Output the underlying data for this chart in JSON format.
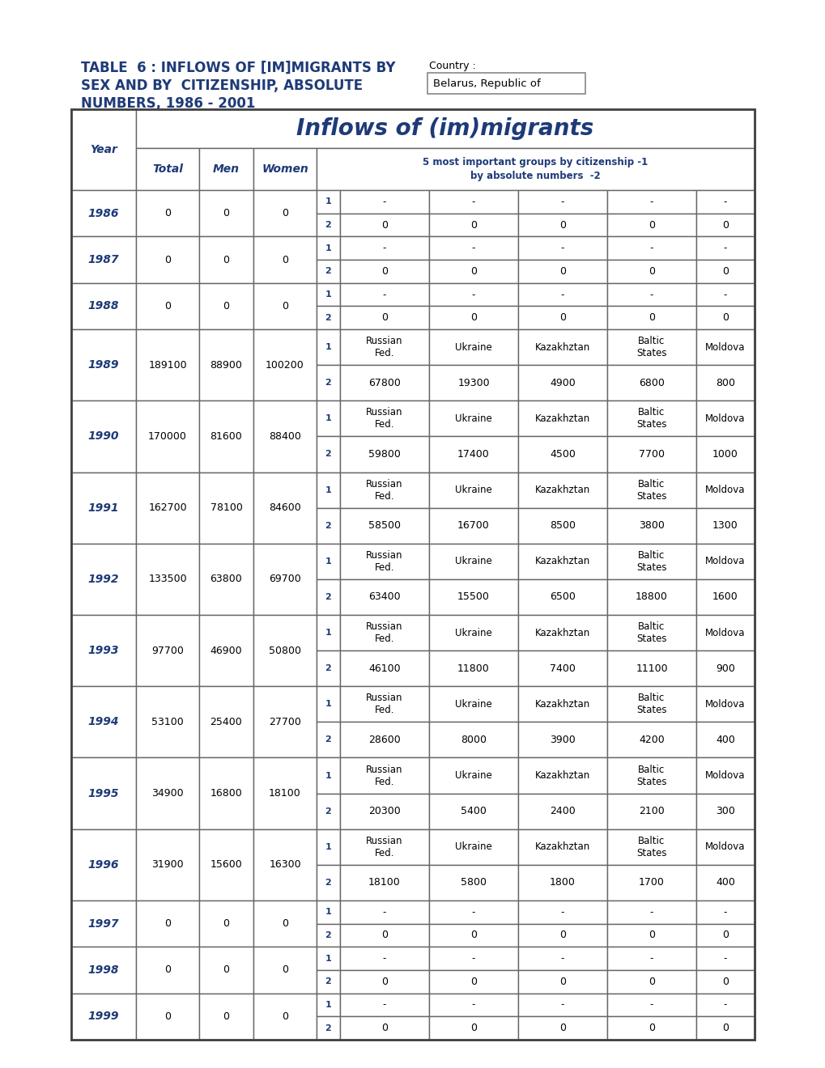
{
  "title_left_line1": "TABLE  6 : INFLOWS OF [IM]MIGRANTS BY",
  "title_left_line2": "SEX AND BY  CITIZENSHIP, ABSOLUTE",
  "title_left_line3": "NUMBERS, 1986 - 2001",
  "title_right_label": "Country :",
  "title_right_value": "Belarus, Republic of",
  "table_header": "Inflows of (im)migrants",
  "subheader1": "5 most important groups by citizenship -1",
  "subheader2": "by absolute numbers  -2",
  "rows": [
    {
      "year": "1986",
      "total": "0",
      "men": "0",
      "women": "0",
      "r1": [
        "-",
        "-",
        "-",
        "-",
        "-"
      ],
      "r2": [
        "0",
        "0",
        "0",
        "0",
        "0"
      ]
    },
    {
      "year": "1987",
      "total": "0",
      "men": "0",
      "women": "0",
      "r1": [
        "-",
        "-",
        "-",
        "-",
        "-"
      ],
      "r2": [
        "0",
        "0",
        "0",
        "0",
        "0"
      ]
    },
    {
      "year": "1988",
      "total": "0",
      "men": "0",
      "women": "0",
      "r1": [
        "-",
        "-",
        "-",
        "-",
        "-"
      ],
      "r2": [
        "0",
        "0",
        "0",
        "0",
        "0"
      ]
    },
    {
      "year": "1989",
      "total": "189100",
      "men": "88900",
      "women": "100200",
      "r1": [
        "Russian\nFed.",
        "Ukraine",
        "Kazakhztan",
        "Baltic\nStates",
        "Moldova"
      ],
      "r2": [
        "67800",
        "19300",
        "4900",
        "6800",
        "800"
      ]
    },
    {
      "year": "1990",
      "total": "170000",
      "men": "81600",
      "women": "88400",
      "r1": [
        "Russian\nFed.",
        "Ukraine",
        "Kazakhztan",
        "Baltic\nStates",
        "Moldova"
      ],
      "r2": [
        "59800",
        "17400",
        "4500",
        "7700",
        "1000"
      ]
    },
    {
      "year": "1991",
      "total": "162700",
      "men": "78100",
      "women": "84600",
      "r1": [
        "Russian\nFed.",
        "Ukraine",
        "Kazakhztan",
        "Baltic\nStates",
        "Moldova"
      ],
      "r2": [
        "58500",
        "16700",
        "8500",
        "3800",
        "1300"
      ]
    },
    {
      "year": "1992",
      "total": "133500",
      "men": "63800",
      "women": "69700",
      "r1": [
        "Russian\nFed.",
        "Ukraine",
        "Kazakhztan",
        "Baltic\nStates",
        "Moldova"
      ],
      "r2": [
        "63400",
        "15500",
        "6500",
        "18800",
        "1600"
      ]
    },
    {
      "year": "1993",
      "total": "97700",
      "men": "46900",
      "women": "50800",
      "r1": [
        "Russian\nFed.",
        "Ukraine",
        "Kazakhztan",
        "Baltic\nStates",
        "Moldova"
      ],
      "r2": [
        "46100",
        "11800",
        "7400",
        "11100",
        "900"
      ]
    },
    {
      "year": "1994",
      "total": "53100",
      "men": "25400",
      "women": "27700",
      "r1": [
        "Russian\nFed.",
        "Ukraine",
        "Kazakhztan",
        "Baltic\nStates",
        "Moldova"
      ],
      "r2": [
        "28600",
        "8000",
        "3900",
        "4200",
        "400"
      ]
    },
    {
      "year": "1995",
      "total": "34900",
      "men": "16800",
      "women": "18100",
      "r1": [
        "Russian\nFed.",
        "Ukraine",
        "Kazakhztan",
        "Baltic\nStates",
        "Moldova"
      ],
      "r2": [
        "20300",
        "5400",
        "2400",
        "2100",
        "300"
      ]
    },
    {
      "year": "1996",
      "total": "31900",
      "men": "15600",
      "women": "16300",
      "r1": [
        "Russian\nFed.",
        "Ukraine",
        "Kazakhztan",
        "Baltic\nStates",
        "Moldova"
      ],
      "r2": [
        "18100",
        "5800",
        "1800",
        "1700",
        "400"
      ]
    },
    {
      "year": "1997",
      "total": "0",
      "men": "0",
      "women": "0",
      "r1": [
        "-",
        "-",
        "-",
        "-",
        "-"
      ],
      "r2": [
        "0",
        "0",
        "0",
        "0",
        "0"
      ]
    },
    {
      "year": "1998",
      "total": "0",
      "men": "0",
      "women": "0",
      "r1": [
        "-",
        "-",
        "-",
        "-",
        "-"
      ],
      "r2": [
        "0",
        "0",
        "0",
        "0",
        "0"
      ]
    },
    {
      "year": "1999",
      "total": "0",
      "men": "0",
      "women": "0",
      "r1": [
        "-",
        "-",
        "-",
        "-",
        "-"
      ],
      "r2": [
        "0",
        "0",
        "0",
        "0",
        "0"
      ]
    }
  ],
  "blue": "#1e3a78",
  "black": "#000000",
  "border": "#666666",
  "white": "#ffffff"
}
